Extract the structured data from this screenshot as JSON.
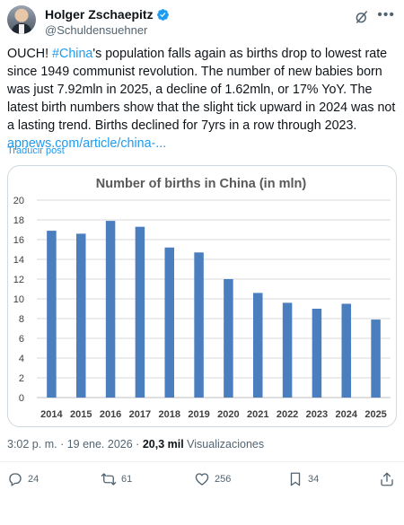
{
  "author": {
    "display_name": "Holger Zschaepitz",
    "handle": "@Schuldensuehner"
  },
  "tweet": {
    "text_1": "OUCH! ",
    "hashtag": "#China",
    "text_2": "'s population falls again as births drop to lowest rate since 1949 communist revolution. The number of new babies born was just 7.92mln in 2025, a decline of 1.62mln, or 17% YoY. The latest birth numbers show that the slight tick upward in 2024 was not a lasting trend. Births declined for 7yrs in a row through 2023.",
    "link": "apnews.com/article/china-...",
    "translate_label": "Traducir post"
  },
  "meta": {
    "time": "3:02 p. m.",
    "separator": " · ",
    "date": "19 ene. 2026",
    "views_count": "20,3 mil",
    "views_label": " Visualizaciones"
  },
  "actions": {
    "replies": "24",
    "reposts": "61",
    "likes": "256",
    "bookmarks": "34"
  },
  "colors": {
    "accent": "#1d9bf0",
    "bar": "#4a7ebf",
    "text_secondary": "#536471"
  },
  "icons": [
    "verified-badge-icon",
    "grok-icon",
    "more-icon",
    "reply-icon",
    "repost-icon",
    "like-icon",
    "bookmark-icon",
    "share-icon"
  ],
  "chart_data": {
    "type": "bar",
    "title": "Number of births in China (in mln)",
    "categories": [
      "2014",
      "2015",
      "2016",
      "2017",
      "2018",
      "2019",
      "2020",
      "2021",
      "2022",
      "2023",
      "2024",
      "2025"
    ],
    "values": [
      16.9,
      16.6,
      17.9,
      17.3,
      15.2,
      14.7,
      12.0,
      10.6,
      9.6,
      9.0,
      9.5,
      7.9
    ],
    "ylim": [
      0,
      20
    ],
    "yticks": [
      "0",
      "2",
      "4",
      "6",
      "8",
      "10",
      "12",
      "14",
      "16",
      "18",
      "20"
    ],
    "grid": true
  }
}
